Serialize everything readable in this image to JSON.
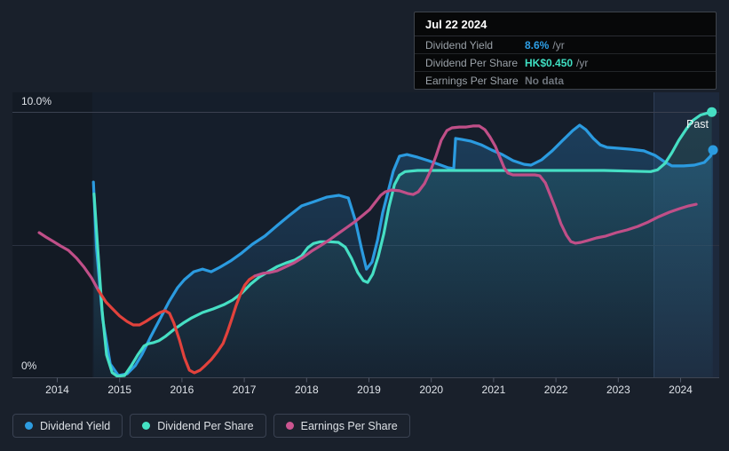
{
  "tooltip": {
    "date": "Jul 22 2024",
    "rows": [
      {
        "label": "Dividend Yield",
        "value": "8.6%",
        "suffix": "/yr",
        "value_color": "#2e9fe6"
      },
      {
        "label": "Dividend Per Share",
        "value": "HK$0.450",
        "suffix": "/yr",
        "value_color": "#3fdfc2"
      },
      {
        "label": "Earnings Per Share",
        "value": "No data",
        "suffix": "",
        "value_color": "#6e747c"
      }
    ]
  },
  "legend": {
    "items": [
      {
        "label": "Dividend Yield",
        "color": "#2d9ce0"
      },
      {
        "label": "Dividend Per Share",
        "color": "#44e2c4"
      },
      {
        "label": "Earnings Per Share",
        "color": "#cb5590"
      }
    ]
  },
  "chart_data": {
    "type": "line",
    "past_label": "Past",
    "y_axis": {
      "top_label": "10.0%",
      "bottom_label": "0%",
      "min_pct": 0,
      "max_pct": 10
    },
    "x_axis": {
      "tick_years": [
        2014,
        2015,
        2016,
        2017,
        2018,
        2019,
        2020,
        2021,
        2022,
        2023,
        2024
      ]
    },
    "bands": {
      "data_start_year": 2014.56,
      "past_start_year": 2023.56
    },
    "series": [
      {
        "id": "dividend-yield",
        "name": "Dividend Yield",
        "color": "#2b9be0",
        "unit": "percent",
        "area": true,
        "end_marker": true,
        "points": [
          [
            2014.58,
            7.38
          ],
          [
            2014.63,
            4.87
          ],
          [
            2014.73,
            2.18
          ],
          [
            2014.85,
            0.5
          ],
          [
            2014.98,
            0.07
          ],
          [
            2015.12,
            0.13
          ],
          [
            2015.25,
            0.44
          ],
          [
            2015.36,
            0.87
          ],
          [
            2015.5,
            1.54
          ],
          [
            2015.65,
            2.21
          ],
          [
            2015.79,
            2.85
          ],
          [
            2015.93,
            3.39
          ],
          [
            2016.04,
            3.69
          ],
          [
            2016.19,
            3.99
          ],
          [
            2016.33,
            4.09
          ],
          [
            2016.47,
            3.99
          ],
          [
            2016.61,
            4.16
          ],
          [
            2016.78,
            4.4
          ],
          [
            2016.96,
            4.7
          ],
          [
            2017.13,
            5.03
          ],
          [
            2017.33,
            5.34
          ],
          [
            2017.53,
            5.74
          ],
          [
            2017.72,
            6.11
          ],
          [
            2017.92,
            6.48
          ],
          [
            2018.12,
            6.64
          ],
          [
            2018.32,
            6.81
          ],
          [
            2018.52,
            6.88
          ],
          [
            2018.67,
            6.78
          ],
          [
            2018.78,
            5.94
          ],
          [
            2018.88,
            4.87
          ],
          [
            2018.96,
            4.09
          ],
          [
            2019.05,
            4.36
          ],
          [
            2019.14,
            5.2
          ],
          [
            2019.22,
            6.21
          ],
          [
            2019.31,
            7.05
          ],
          [
            2019.39,
            7.79
          ],
          [
            2019.49,
            8.36
          ],
          [
            2019.61,
            8.42
          ],
          [
            2019.78,
            8.32
          ],
          [
            2019.95,
            8.19
          ],
          [
            2020.12,
            8.05
          ],
          [
            2020.27,
            7.92
          ],
          [
            2020.36,
            7.89
          ],
          [
            2020.39,
            9.03
          ],
          [
            2020.49,
            8.99
          ],
          [
            2020.63,
            8.93
          ],
          [
            2020.8,
            8.79
          ],
          [
            2020.97,
            8.59
          ],
          [
            2021.14,
            8.42
          ],
          [
            2021.31,
            8.19
          ],
          [
            2021.49,
            8.05
          ],
          [
            2021.6,
            8.02
          ],
          [
            2021.77,
            8.22
          ],
          [
            2021.94,
            8.56
          ],
          [
            2022.11,
            8.96
          ],
          [
            2022.27,
            9.33
          ],
          [
            2022.38,
            9.53
          ],
          [
            2022.48,
            9.36
          ],
          [
            2022.6,
            9.03
          ],
          [
            2022.71,
            8.79
          ],
          [
            2022.82,
            8.69
          ],
          [
            2022.98,
            8.66
          ],
          [
            2023.2,
            8.62
          ],
          [
            2023.41,
            8.56
          ],
          [
            2023.59,
            8.39
          ],
          [
            2023.74,
            8.15
          ],
          [
            2023.86,
            7.99
          ],
          [
            2024.05,
            7.99
          ],
          [
            2024.22,
            8.02
          ],
          [
            2024.38,
            8.12
          ],
          [
            2024.48,
            8.36
          ],
          [
            2024.52,
            8.59
          ]
        ]
      },
      {
        "id": "dividend-per-share",
        "name": "Dividend Per Share",
        "color": "#46dfc4",
        "unit": "hkd",
        "area": true,
        "end_marker": true,
        "points": [
          [
            2014.59,
            0.311
          ],
          [
            2014.65,
            0.218
          ],
          [
            2014.72,
            0.113
          ],
          [
            2014.79,
            0.038
          ],
          [
            2014.88,
            0.008
          ],
          [
            2014.96,
            0.002
          ],
          [
            2015.08,
            0.003
          ],
          [
            2015.19,
            0.02
          ],
          [
            2015.29,
            0.038
          ],
          [
            2015.39,
            0.053
          ],
          [
            2015.46,
            0.057
          ],
          [
            2015.55,
            0.059
          ],
          [
            2015.63,
            0.062
          ],
          [
            2015.73,
            0.069
          ],
          [
            2015.87,
            0.081
          ],
          [
            2016.02,
            0.092
          ],
          [
            2016.16,
            0.101
          ],
          [
            2016.33,
            0.11
          ],
          [
            2016.5,
            0.116
          ],
          [
            2016.67,
            0.123
          ],
          [
            2016.81,
            0.131
          ],
          [
            2016.96,
            0.143
          ],
          [
            2017.1,
            0.158
          ],
          [
            2017.24,
            0.17
          ],
          [
            2017.38,
            0.179
          ],
          [
            2017.53,
            0.188
          ],
          [
            2017.67,
            0.194
          ],
          [
            2017.81,
            0.199
          ],
          [
            2017.92,
            0.206
          ],
          [
            2018.02,
            0.22
          ],
          [
            2018.11,
            0.227
          ],
          [
            2018.22,
            0.23
          ],
          [
            2018.37,
            0.23
          ],
          [
            2018.51,
            0.229
          ],
          [
            2018.62,
            0.221
          ],
          [
            2018.72,
            0.202
          ],
          [
            2018.82,
            0.178
          ],
          [
            2018.91,
            0.164
          ],
          [
            2018.98,
            0.161
          ],
          [
            2019.06,
            0.175
          ],
          [
            2019.15,
            0.205
          ],
          [
            2019.24,
            0.244
          ],
          [
            2019.32,
            0.289
          ],
          [
            2019.41,
            0.327
          ],
          [
            2019.49,
            0.343
          ],
          [
            2019.58,
            0.349
          ],
          [
            2019.78,
            0.351
          ],
          [
            2020.2,
            0.351
          ],
          [
            2021.06,
            0.351
          ],
          [
            2021.91,
            0.351
          ],
          [
            2022.77,
            0.351
          ],
          [
            2023.52,
            0.349
          ],
          [
            2023.63,
            0.352
          ],
          [
            2023.75,
            0.363
          ],
          [
            2023.86,
            0.381
          ],
          [
            2023.97,
            0.402
          ],
          [
            2024.09,
            0.421
          ],
          [
            2024.2,
            0.436
          ],
          [
            2024.32,
            0.445
          ],
          [
            2024.42,
            0.448
          ],
          [
            2024.5,
            0.45
          ]
        ]
      },
      {
        "id": "earnings-per-share",
        "name": "Earnings Per Share",
        "color": "#c04f88",
        "unit": "percent",
        "area": false,
        "end_marker": false,
        "segments": [
          {
            "color": "#c04f88",
            "points": [
              [
                2013.71,
                5.47
              ],
              [
                2013.82,
                5.3
              ],
              [
                2013.94,
                5.13
              ],
              [
                2014.05,
                4.97
              ],
              [
                2014.18,
                4.8
              ],
              [
                2014.31,
                4.5
              ],
              [
                2014.43,
                4.16
              ],
              [
                2014.55,
                3.76
              ],
              [
                2014.66,
                3.29
              ]
            ]
          },
          {
            "color": "#e2423c",
            "points": [
              [
                2014.66,
                3.29
              ],
              [
                2014.78,
                2.85
              ],
              [
                2014.89,
                2.58
              ],
              [
                2015.0,
                2.32
              ],
              [
                2015.12,
                2.11
              ],
              [
                2015.22,
                1.98
              ],
              [
                2015.32,
                1.98
              ],
              [
                2015.42,
                2.11
              ],
              [
                2015.53,
                2.28
              ],
              [
                2015.65,
                2.45
              ],
              [
                2015.73,
                2.52
              ],
              [
                2015.8,
                2.42
              ],
              [
                2015.87,
                2.05
              ],
              [
                2015.96,
                1.41
              ],
              [
                2016.04,
                0.74
              ],
              [
                2016.12,
                0.27
              ],
              [
                2016.2,
                0.17
              ],
              [
                2016.29,
                0.27
              ],
              [
                2016.37,
                0.44
              ],
              [
                2016.47,
                0.67
              ],
              [
                2016.57,
                0.97
              ],
              [
                2016.66,
                1.28
              ],
              [
                2016.73,
                1.71
              ],
              [
                2016.8,
                2.21
              ],
              [
                2016.87,
                2.72
              ],
              [
                2016.94,
                3.15
              ],
              [
                2017.01,
                3.49
              ],
              [
                2017.08,
                3.69
              ],
              [
                2017.17,
                3.83
              ]
            ]
          },
          {
            "color": "#c04f88",
            "points": [
              [
                2017.17,
                3.83
              ],
              [
                2017.3,
                3.93
              ],
              [
                2017.41,
                3.96
              ],
              [
                2017.53,
                4.03
              ],
              [
                2017.65,
                4.16
              ],
              [
                2017.8,
                4.33
              ],
              [
                2017.94,
                4.53
              ],
              [
                2018.08,
                4.77
              ],
              [
                2018.22,
                4.97
              ],
              [
                2018.37,
                5.2
              ],
              [
                2018.51,
                5.44
              ],
              [
                2018.65,
                5.67
              ],
              [
                2018.79,
                5.91
              ],
              [
                2018.91,
                6.14
              ],
              [
                2019.01,
                6.34
              ],
              [
                2019.11,
                6.64
              ],
              [
                2019.19,
                6.88
              ],
              [
                2019.26,
                7.01
              ],
              [
                2019.36,
                7.08
              ],
              [
                2019.49,
                7.05
              ],
              [
                2019.62,
                6.95
              ],
              [
                2019.71,
                6.91
              ],
              [
                2019.79,
                7.01
              ],
              [
                2019.89,
                7.32
              ],
              [
                2019.99,
                7.82
              ],
              [
                2020.08,
                8.39
              ],
              [
                2020.16,
                8.96
              ],
              [
                2020.25,
                9.33
              ],
              [
                2020.33,
                9.43
              ],
              [
                2020.45,
                9.46
              ],
              [
                2020.56,
                9.46
              ],
              [
                2020.67,
                9.5
              ],
              [
                2020.77,
                9.5
              ],
              [
                2020.86,
                9.36
              ],
              [
                2020.94,
                9.09
              ],
              [
                2021.03,
                8.72
              ],
              [
                2021.1,
                8.32
              ],
              [
                2021.17,
                7.92
              ],
              [
                2021.23,
                7.72
              ],
              [
                2021.31,
                7.65
              ],
              [
                2021.49,
                7.65
              ],
              [
                2021.66,
                7.65
              ],
              [
                2021.74,
                7.62
              ],
              [
                2021.83,
                7.35
              ],
              [
                2021.91,
                6.88
              ],
              [
                2022.0,
                6.34
              ],
              [
                2022.08,
                5.81
              ],
              [
                2022.17,
                5.37
              ],
              [
                2022.24,
                5.13
              ],
              [
                2022.31,
                5.07
              ],
              [
                2022.4,
                5.1
              ],
              [
                2022.51,
                5.17
              ],
              [
                2022.65,
                5.27
              ],
              [
                2022.8,
                5.34
              ],
              [
                2022.97,
                5.47
              ],
              [
                2023.14,
                5.57
              ],
              [
                2023.31,
                5.7
              ],
              [
                2023.48,
                5.87
              ],
              [
                2023.65,
                6.07
              ],
              [
                2023.82,
                6.24
              ],
              [
                2023.99,
                6.38
              ],
              [
                2024.13,
                6.48
              ],
              [
                2024.25,
                6.54
              ]
            ]
          }
        ]
      }
    ]
  }
}
